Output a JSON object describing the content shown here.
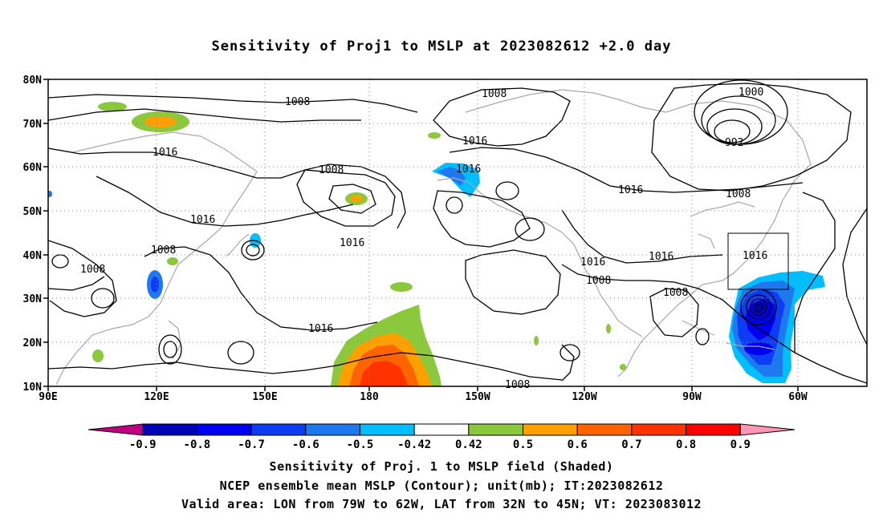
{
  "title": "Sensitivity of Proj1 to MSLP at 2023082612 +2.0 day",
  "lat_labels": [
    "80N",
    "70N",
    "60N",
    "50N",
    "40N",
    "30N",
    "20N",
    "10N"
  ],
  "lon_labels": [
    "90E",
    "120E",
    "150E",
    "180",
    "150W",
    "120W",
    "90W",
    "60W"
  ],
  "contour_labels": [
    "1008",
    "1008",
    "1000",
    "992",
    "1016",
    "1016",
    "1016",
    "1016",
    "1008",
    "1008",
    "1016",
    "1016",
    "1008",
    "1016",
    "1016",
    "1008",
    "1016",
    "1008",
    "1008",
    "1016",
    "1008",
    "1008"
  ],
  "colorbar": {
    "ticks": [
      "-0.9",
      "-0.8",
      "-0.7",
      "-0.6",
      "-0.5",
      "-0.42",
      "0.42",
      "0.5",
      "0.6",
      "0.7",
      "0.8",
      "0.9"
    ],
    "colors": [
      "#c1007f",
      "#0000b8",
      "#0000f0",
      "#0e3cf5",
      "#1e78f0",
      "#00beff",
      "#ffffff",
      "#8cc83c",
      "#ffa000",
      "#ff6400",
      "#ff3200",
      "#ff0000",
      "#ff96b4"
    ]
  },
  "captions": [
    "Sensitivity of Proj. 1 to MSLP field (Shaded)",
    "NCEP ensemble mean MSLP (Contour); unit(mb); IT:2023082612",
    "Valid area: LON from 79W to 62W, LAT from 32N to 45N; VT: 2023083012"
  ]
}
